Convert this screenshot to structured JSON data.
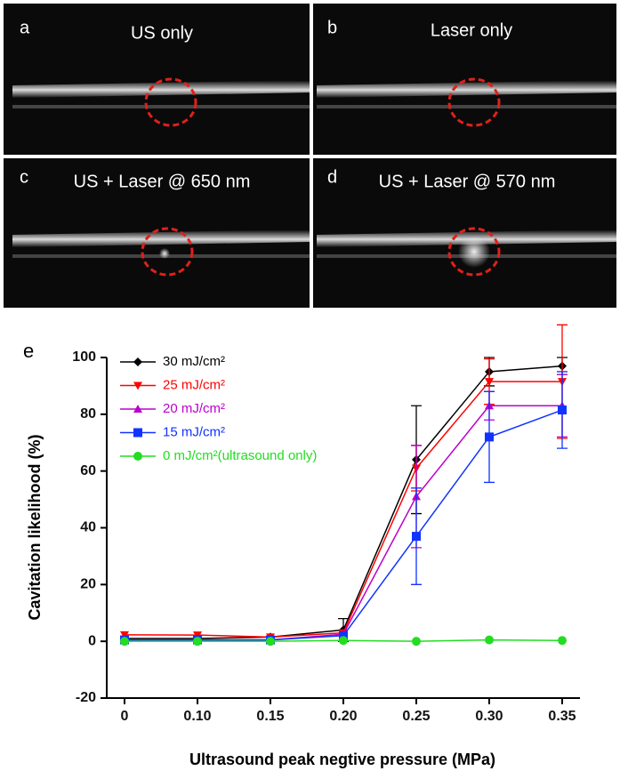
{
  "panels": [
    {
      "letter": "a",
      "title": "US only"
    },
    {
      "letter": "b",
      "title": "Laser only"
    },
    {
      "letter": "c",
      "title": "US + Laser @ 650 nm"
    },
    {
      "letter": "d",
      "title": "US + Laser @ 570 nm"
    }
  ],
  "chart_data": {
    "type": "line",
    "label": "e",
    "ylabel": "Cavitation likelihood (%)",
    "xlabel": "Ultrasound peak negtive pressure (MPa)",
    "categories": [
      "0",
      "0.10",
      "0.15",
      "0.20",
      "0.25",
      "0.30",
      "0.35"
    ],
    "ylim": [
      -20,
      100
    ],
    "yticks": [
      -20,
      0,
      20,
      40,
      60,
      80,
      100
    ],
    "series": [
      {
        "name": "30 mJ/cm²",
        "color": "#000000",
        "marker": "diamond",
        "values": [
          1,
          1,
          1.5,
          4,
          64,
          95,
          97
        ],
        "errors": [
          0,
          0,
          0,
          4,
          19,
          5,
          3
        ]
      },
      {
        "name": "25 mJ/cm²",
        "color": "#ff0000",
        "marker": "triangle-down",
        "values": [
          2.3,
          2.2,
          1.5,
          3,
          61,
          91.5,
          91.5
        ],
        "errors": [
          0,
          0,
          0,
          0,
          8,
          8,
          20
        ]
      },
      {
        "name": "20 mJ/cm²",
        "color": "#bb00cc",
        "marker": "triangle-up",
        "values": [
          0.5,
          0.5,
          0.5,
          2.5,
          51,
          83,
          83
        ],
        "errors": [
          0,
          0,
          0,
          0,
          18,
          5,
          11
        ]
      },
      {
        "name": "15 mJ/cm²",
        "color": "#1133ff",
        "marker": "square",
        "values": [
          0.5,
          0.5,
          0.5,
          2,
          37,
          72,
          81.5
        ],
        "errors": [
          0,
          0,
          0,
          0,
          17,
          16,
          13.5
        ]
      },
      {
        "name": "0 mJ/cm²(ultrasound only)",
        "color": "#22dd22",
        "marker": "circle",
        "values": [
          0,
          0,
          0,
          0.3,
          0,
          0.5,
          0.3
        ],
        "errors": [
          0,
          0,
          0,
          0,
          0,
          0,
          0
        ]
      }
    ]
  }
}
